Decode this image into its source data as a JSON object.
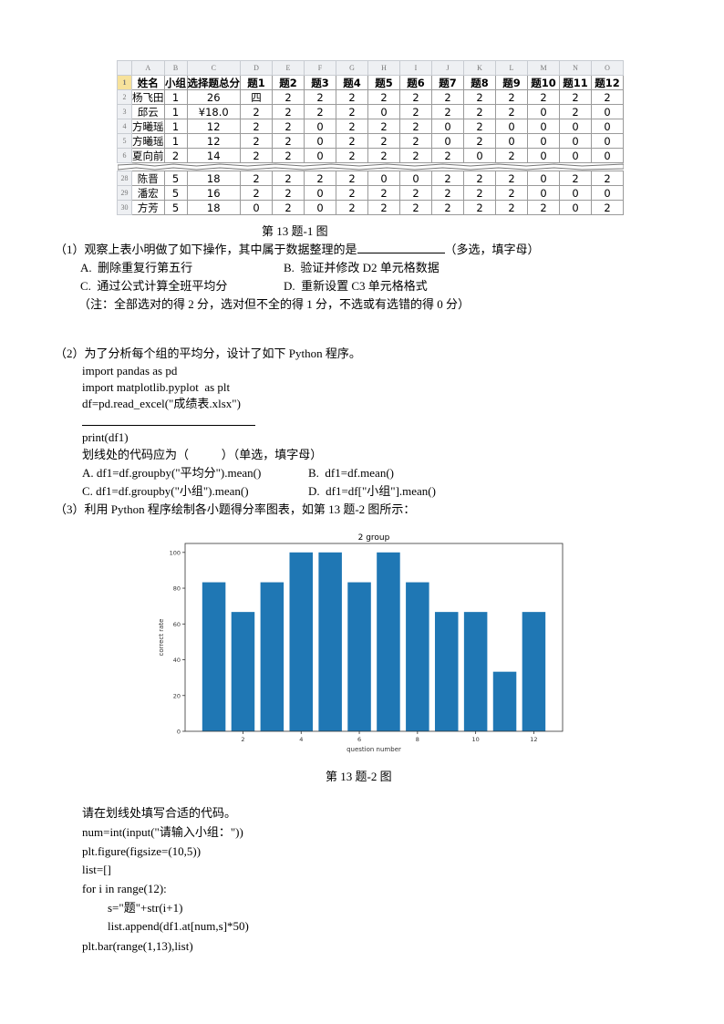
{
  "sheet": {
    "col_letters": [
      "A",
      "B",
      "C",
      "D",
      "E",
      "F",
      "G",
      "H",
      "I",
      "J",
      "K",
      "L",
      "M",
      "N",
      "O"
    ],
    "header": [
      "姓名",
      "小组",
      "选择题总分",
      "题1",
      "题2",
      "题3",
      "题4",
      "题5",
      "题6",
      "题7",
      "题8",
      "题9",
      "题10",
      "题11",
      "题12"
    ],
    "rows": [
      {
        "n": "2",
        "cells": [
          "杨飞田",
          "1",
          "26",
          "四",
          "2",
          "2",
          "2",
          "2",
          "2",
          "2",
          "2",
          "2",
          "2",
          "2",
          "2"
        ]
      },
      {
        "n": "3",
        "cells": [
          "邱云",
          "1",
          "¥18.0",
          "2",
          "2",
          "2",
          "2",
          "0",
          "2",
          "2",
          "2",
          "2",
          "0",
          "2",
          "0"
        ]
      },
      {
        "n": "4",
        "cells": [
          "方曦瑶",
          "1",
          "12",
          "2",
          "2",
          "0",
          "2",
          "2",
          "2",
          "0",
          "2",
          "0",
          "0",
          "0",
          "0"
        ]
      },
      {
        "n": "5",
        "cells": [
          "方曦瑶",
          "1",
          "12",
          "2",
          "2",
          "0",
          "2",
          "2",
          "2",
          "0",
          "2",
          "0",
          "0",
          "0",
          "0"
        ]
      },
      {
        "n": "6",
        "cells": [
          "夏向前",
          "2",
          "14",
          "2",
          "2",
          "0",
          "2",
          "2",
          "2",
          "2",
          "0",
          "2",
          "0",
          "0",
          "0"
        ],
        "torn": true
      },
      {
        "n": "28",
        "cells": [
          "陈晋",
          "5",
          "18",
          "2",
          "2",
          "2",
          "2",
          "0",
          "0",
          "2",
          "2",
          "2",
          "0",
          "2",
          "2"
        ]
      },
      {
        "n": "29",
        "cells": [
          "潘宏",
          "5",
          "16",
          "2",
          "2",
          "0",
          "2",
          "2",
          "2",
          "2",
          "2",
          "2",
          "0",
          "0",
          "0"
        ]
      },
      {
        "n": "30",
        "cells": [
          "方芳",
          "5",
          "18",
          "0",
          "2",
          "0",
          "2",
          "2",
          "2",
          "2",
          "2",
          "2",
          "2",
          "0",
          "2"
        ]
      }
    ],
    "header_row_number": "1"
  },
  "caption1": "第 13 题-1 图",
  "q1": {
    "stem": "（1）观察上表小明做了如下操作，其中属于数据整理的是",
    "suffix": "（多选，填字母）",
    "optA": "A.  删除重复行第五行",
    "optB": "B.  验证并修改 D2 单元格数据",
    "optC": "C.  通过公式计算全班平均分",
    "optD": "D.  重新设置 C3 单元格格式",
    "note": "（注：全部选对的得 2 分，选对但不全的得 1 分，不选或有选错的得 0 分）"
  },
  "q2": {
    "stem": "（2）为了分析每个组的平均分，设计了如下 Python 程序。",
    "code1": "import pandas as pd",
    "code2": "import matplotlib.pyplot  as plt",
    "code3": "df=pd.read_excel(\"成绩表.xlsx\")",
    "code4": "print(df1)",
    "ask": "划线处的代码应为（           ）（单选，填字母）",
    "optA": "A. df1=df.groupby(\"平均分\").mean()",
    "optB": "B.  df1=df.mean()",
    "optC": "C. df1=df.groupby(\"小组\").mean()",
    "optD": "D.  df1=df[\"小组\"].mean()"
  },
  "q3": {
    "stem": "（3）利用 Python 程序绘制各小题得分率图表，如第 13 题-2 图所示："
  },
  "chart_data": {
    "type": "bar",
    "title": "2 group",
    "xlabel": "question number",
    "ylabel": "correct rate",
    "x": [
      1,
      2,
      3,
      4,
      5,
      6,
      7,
      8,
      9,
      10,
      11,
      12
    ],
    "values": [
      83.3,
      66.7,
      83.3,
      100,
      100,
      83.3,
      100,
      83.3,
      66.7,
      66.7,
      33.3,
      66.7
    ],
    "xticks": [
      2,
      4,
      6,
      8,
      10,
      12
    ],
    "yticks": [
      0,
      20,
      40,
      60,
      80,
      100
    ],
    "xlim": [
      0.01,
      12.99
    ],
    "ylim": [
      0,
      105
    ],
    "bar_color": "#1f77b4",
    "grid": false
  },
  "caption2": "第 13 题-2 图",
  "q3code": {
    "prompt": "请在划线处填写合适的代码。",
    "l1": "num=int(input(\"请输入小组：\"))",
    "l2": "plt.figure(figsize=(10,5))",
    "l3": "list=[]",
    "l4": "for i in range(12):",
    "l5": "s=\"题\"+str(i+1)",
    "l6": "list.append(df1.at[num,s]*50)",
    "l7": "plt.bar(range(1,13),list)"
  }
}
